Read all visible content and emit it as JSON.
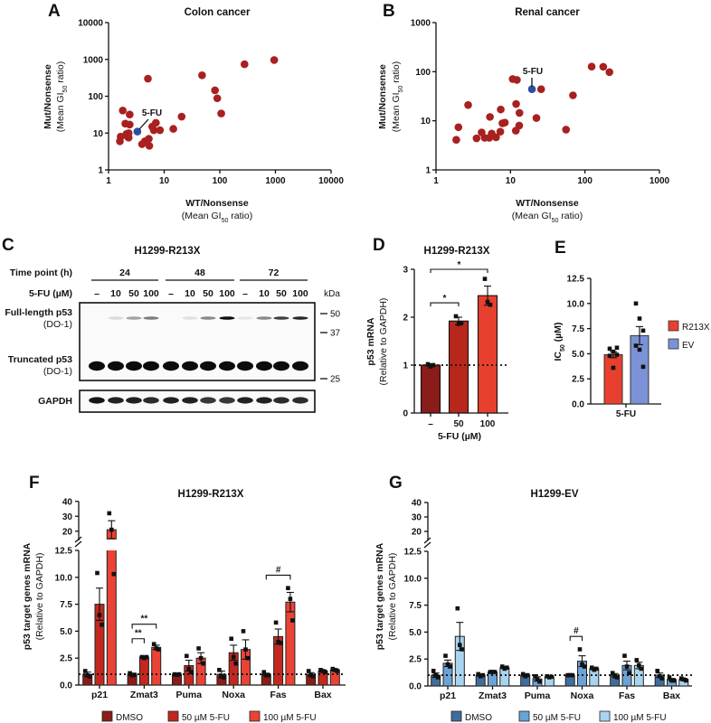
{
  "panel_labels": {
    "A": "A",
    "B": "B",
    "C": "C",
    "D": "D",
    "E": "E",
    "F": "F",
    "G": "G"
  },
  "chart_data": [
    {
      "id": "A",
      "type": "scatter",
      "title": "Colon cancer",
      "xlabel": "WT/Nonsense",
      "xlabel2": [
        "(Mean GI",
        "50",
        " ratio)"
      ],
      "ylabel": "Mut/Nonsense",
      "ylabel2": [
        "(Mean GI",
        "50",
        " ratio)"
      ],
      "xscale": "log",
      "yscale": "log",
      "xlim": [
        1,
        10000
      ],
      "ylim": [
        1,
        10000
      ],
      "xticks": [
        "1",
        "10",
        "100",
        "1000",
        "10000"
      ],
      "yticks": [
        "1",
        "10",
        "100",
        "1000",
        "10000"
      ],
      "points": [
        [
          1.6,
          6
        ],
        [
          1.65,
          8
        ],
        [
          1.8,
          41
        ],
        [
          2.0,
          18
        ],
        [
          2.1,
          9.5
        ],
        [
          2.2,
          8
        ],
        [
          2.3,
          10
        ],
        [
          2.4,
          32
        ],
        [
          2.4,
          17
        ],
        [
          2.3,
          7.5
        ],
        [
          4.0,
          5
        ],
        [
          4.5,
          6
        ],
        [
          5.1,
          300
        ],
        [
          5.3,
          7
        ],
        [
          5.4,
          4.5
        ],
        [
          6.1,
          15
        ],
        [
          6.5,
          12
        ],
        [
          7.1,
          19
        ],
        [
          8.4,
          12
        ],
        [
          14.6,
          13
        ],
        [
          20.6,
          28
        ],
        [
          48,
          370
        ],
        [
          82,
          145
        ],
        [
          90,
          88
        ],
        [
          106,
          34
        ],
        [
          278,
          740
        ],
        [
          950,
          960
        ]
      ],
      "highlight": {
        "label": "5-FU",
        "x": 3.3,
        "y": 11
      },
      "colors": {
        "point": "#a8201f",
        "highlight": "#2c4ea3"
      }
    },
    {
      "id": "B",
      "type": "scatter",
      "title": "Renal cancer",
      "xlabel": "WT/Nonsense",
      "xlabel2": [
        "(Mean GI",
        "50",
        " ratio)"
      ],
      "ylabel": "Mut/Nonsense",
      "ylabel2": [
        "(Mean GI",
        "50",
        " ratio)"
      ],
      "xscale": "log",
      "yscale": "log",
      "xlim": [
        1,
        1000
      ],
      "ylim": [
        1,
        1000
      ],
      "xticks": [
        "1",
        "10",
        "100",
        "1000"
      ],
      "yticks": [
        "1",
        "10",
        "100",
        "1000"
      ],
      "points": [
        [
          1.87,
          4.1
        ],
        [
          2.0,
          7.4
        ],
        [
          2.7,
          21
        ],
        [
          3.5,
          4.4
        ],
        [
          4.1,
          5.8
        ],
        [
          4.5,
          4.5
        ],
        [
          5.3,
          12
        ],
        [
          5.2,
          4.5
        ],
        [
          5.6,
          5.5
        ],
        [
          6.4,
          4.6
        ],
        [
          7.4,
          17
        ],
        [
          7.3,
          6
        ],
        [
          7.8,
          8.9
        ],
        [
          8.4,
          9.2
        ],
        [
          10.7,
          71
        ],
        [
          12.2,
          68
        ],
        [
          11.9,
          22
        ],
        [
          11.8,
          6.3
        ],
        [
          13.2,
          14.5
        ],
        [
          13.1,
          8
        ],
        [
          22.3,
          11.4
        ],
        [
          25.8,
          44
        ],
        [
          55.7,
          6.6
        ],
        [
          69,
          33
        ],
        [
          123,
          127
        ],
        [
          176,
          126
        ],
        [
          213,
          98
        ]
      ],
      "highlight": {
        "label": "5-FU",
        "x": 19.4,
        "y": 44
      },
      "colors": {
        "point": "#a8201f",
        "highlight": "#2c4ea3"
      }
    },
    {
      "id": "C",
      "type": "western_blot",
      "title": "H1299-R213X",
      "time_label": "Time point (h)",
      "dose_label": "5-FU (µM)",
      "time_points": [
        "24",
        "48",
        "72"
      ],
      "doses": [
        "–",
        "10",
        "50",
        "100"
      ],
      "kda_label": "kDa",
      "markers": [
        "50",
        "37",
        "25"
      ],
      "bands": [
        {
          "label": "Full-length p53",
          "sub": "(DO-1)",
          "intensity": [
            0,
            0.12,
            0.35,
            0.5,
            0,
            0.1,
            0.45,
            0.95,
            0.08,
            0.45,
            0.75,
            0.85
          ]
        },
        {
          "label": "Truncated p53",
          "sub": "(DO-1)",
          "intensity": [
            1,
            1,
            1,
            1,
            1,
            1,
            1,
            1,
            1,
            1,
            1,
            1
          ]
        },
        {
          "label": "GAPDH",
          "intensity": [
            1,
            0.95,
            0.95,
            0.9,
            0.95,
            0.95,
            0.85,
            0.85,
            0.95,
            0.95,
            0.9,
            0.9
          ]
        }
      ]
    },
    {
      "id": "D",
      "type": "bar",
      "title": "H1299-R213X",
      "ylabel": "p53 mRNA",
      "ylabel2": "(Relative to GAPDH)",
      "xlabel": "5-FU (µM)",
      "ylim": [
        0,
        3
      ],
      "yticks": [
        "0",
        "1",
        "2",
        "3"
      ],
      "reference_line": 1,
      "bars": [
        {
          "label": "–",
          "mean": 1.0,
          "sem": 0.03,
          "points": [
            1.02,
            0.97,
            1.0
          ],
          "color": "#8a1c1a"
        },
        {
          "label": "50",
          "mean": 1.92,
          "sem": 0.08,
          "points": [
            2.02,
            1.86,
            1.88
          ],
          "color": "#b8271c"
        },
        {
          "label": "100",
          "mean": 2.45,
          "sem": 0.2,
          "points": [
            2.8,
            2.32,
            2.26
          ],
          "color": "#e8402f"
        }
      ],
      "significance": [
        {
          "from": 0,
          "to": 1,
          "y": 2.3,
          "label": "*"
        },
        {
          "from": 0,
          "to": 2,
          "y": 3.0,
          "label": "*"
        }
      ]
    },
    {
      "id": "E",
      "type": "bar",
      "ylabel": [
        "IC",
        "50",
        " (µM)"
      ],
      "xlabel": "5-FU",
      "ylim": [
        0,
        12.5
      ],
      "yticks": [
        "0.0",
        "2.5",
        "5.0",
        "7.5",
        "10.0",
        "12.5"
      ],
      "bars": [
        {
          "label": "R213X",
          "mean": 4.9,
          "sem": 0.3,
          "points": [
            5.5,
            5.2,
            5.6,
            4.8,
            3.6,
            4.9
          ],
          "color": "#e8402f"
        },
        {
          "label": "EV",
          "mean": 6.8,
          "sem": 0.9,
          "points": [
            10.0,
            8.5,
            7.3,
            5.8,
            5.4,
            3.7
          ],
          "color": "#7b93d6"
        }
      ],
      "legend": [
        "R213X",
        "EV"
      ]
    },
    {
      "id": "F",
      "type": "grouped_bar",
      "title": "H1299-R213X",
      "ylabel": "p53 target genes mRNA",
      "ylabel2": "(Relative to GAPDH)",
      "ylim": [
        0,
        40
      ],
      "axis_break": [
        12.5,
        15
      ],
      "yticks": [
        "0.0",
        "2.5",
        "5.0",
        "7.5",
        "10.0",
        "12.5",
        "20",
        "30",
        "40"
      ],
      "reference_line": 1,
      "categories": [
        "p21",
        "Zmat3",
        "Puma",
        "Noxa",
        "Fas",
        "Bax"
      ],
      "series": [
        {
          "name": "DMSO",
          "color": "#8b1c17",
          "values": [
            1.0,
            1.0,
            1.0,
            1.0,
            1.0,
            1.0
          ],
          "sem": [
            0.2,
            0.1,
            0.05,
            0.3,
            0.1,
            0.15
          ],
          "points": [
            [
              1.3,
              0.9,
              0.8
            ],
            [
              1.1,
              0.9,
              0.95
            ],
            [
              1.0,
              0.95,
              1.0
            ],
            [
              1.4,
              0.8,
              0.7
            ],
            [
              1.2,
              0.9,
              0.9
            ],
            [
              1.3,
              0.9,
              0.8
            ]
          ]
        },
        {
          "name": "50 µM 5-FU",
          "color": "#c2281e",
          "values": [
            7.5,
            2.6,
            1.8,
            3.0,
            4.5,
            1.3
          ],
          "sem": [
            1.5,
            0.1,
            0.5,
            0.7,
            0.7,
            0.1
          ],
          "points": [
            [
              10.4,
              6.5,
              5.6
            ],
            [
              2.6,
              2.5,
              2.6
            ],
            [
              2.7,
              1.5,
              1.2
            ],
            [
              4.3,
              2.6,
              2.0
            ],
            [
              5.8,
              4.0,
              3.9
            ],
            [
              1.4,
              1.3,
              1.2
            ]
          ]
        },
        {
          "name": "100 µM 5-FU",
          "color": "#ea4335",
          "values": [
            21,
            3.5,
            2.5,
            3.3,
            7.7,
            1.4
          ],
          "sem": [
            6,
            0.2,
            0.5,
            0.9,
            0.9,
            0.1
          ],
          "points": [
            [
              32,
              21,
              10.3
            ],
            [
              3.8,
              3.4,
              3.3
            ],
            [
              3.4,
              2.5,
              2.0
            ],
            [
              5.0,
              3.3,
              2.5
            ],
            [
              9.0,
              8.0,
              6.0
            ],
            [
              1.5,
              1.4,
              1.3
            ]
          ]
        }
      ],
      "significance": [
        {
          "category": 1,
          "from": 0,
          "to": 1,
          "y": 4.3,
          "label": "**"
        },
        {
          "category": 1,
          "from": 0,
          "to": 2,
          "y": 5.65,
          "label": "**"
        },
        {
          "category": 4,
          "from": 0,
          "to": 2,
          "y": 10.2,
          "label": "#"
        }
      ]
    },
    {
      "id": "G",
      "type": "grouped_bar",
      "title": "H1299-EV",
      "ylabel": "p53 target genes mRNA",
      "ylabel2": "(Relative to GAPDH)",
      "ylim": [
        0,
        40
      ],
      "axis_break": [
        12.5,
        15
      ],
      "yticks": [
        "0.0",
        "2.5",
        "5.0",
        "7.5",
        "10.0",
        "12.5",
        "20",
        "30",
        "40"
      ],
      "reference_line": 1,
      "categories": [
        "p21",
        "Zmat3",
        "Puma",
        "Noxa",
        "Fas",
        "Bax"
      ],
      "series": [
        {
          "name": "DMSO",
          "color": "#3e6e9c",
          "values": [
            1.0,
            1.0,
            1.0,
            1.0,
            1.0,
            1.0
          ],
          "sem": [
            0.2,
            0.1,
            0.1,
            0.05,
            0.15,
            0.2
          ],
          "points": [
            [
              1.4,
              1.0,
              0.8
            ],
            [
              1.1,
              0.9,
              1.0
            ],
            [
              1.1,
              0.9,
              1.0
            ],
            [
              1.0,
              1.0,
              1.0
            ],
            [
              1.2,
              0.9,
              0.8
            ],
            [
              1.4,
              0.9,
              0.7
            ]
          ]
        },
        {
          "name": "50 µM 5-FU",
          "color": "#6aa3d5",
          "values": [
            2.1,
            1.3,
            0.65,
            2.3,
            1.9,
            0.6
          ],
          "sem": [
            0.3,
            0.05,
            0.2,
            0.5,
            0.4,
            0.1
          ],
          "points": [
            [
              2.8,
              2.0,
              1.8
            ],
            [
              1.3,
              1.3,
              1.3
            ],
            [
              0.9,
              0.6,
              0.4
            ],
            [
              3.4,
              2.0,
              1.8
            ],
            [
              2.8,
              1.8,
              1.2
            ],
            [
              0.8,
              0.5,
              0.5
            ]
          ]
        },
        {
          "name": "100 µM 5-FU",
          "color": "#a9d4ef",
          "values": [
            4.6,
            1.7,
            0.85,
            1.6,
            1.9,
            0.6
          ],
          "sem": [
            1.3,
            0.1,
            0.05,
            0.1,
            0.3,
            0.1
          ],
          "points": [
            [
              7.2,
              3.8,
              3.4
            ],
            [
              1.8,
              1.6,
              1.7
            ],
            [
              0.9,
              0.8,
              0.85
            ],
            [
              1.7,
              1.5,
              1.6
            ],
            [
              2.4,
              1.9,
              1.6
            ],
            [
              0.7,
              0.6,
              0.5
            ]
          ]
        }
      ],
      "significance": [
        {
          "category": 3,
          "from": 0,
          "to": 1,
          "y": 4.6,
          "label": "#"
        }
      ]
    }
  ]
}
